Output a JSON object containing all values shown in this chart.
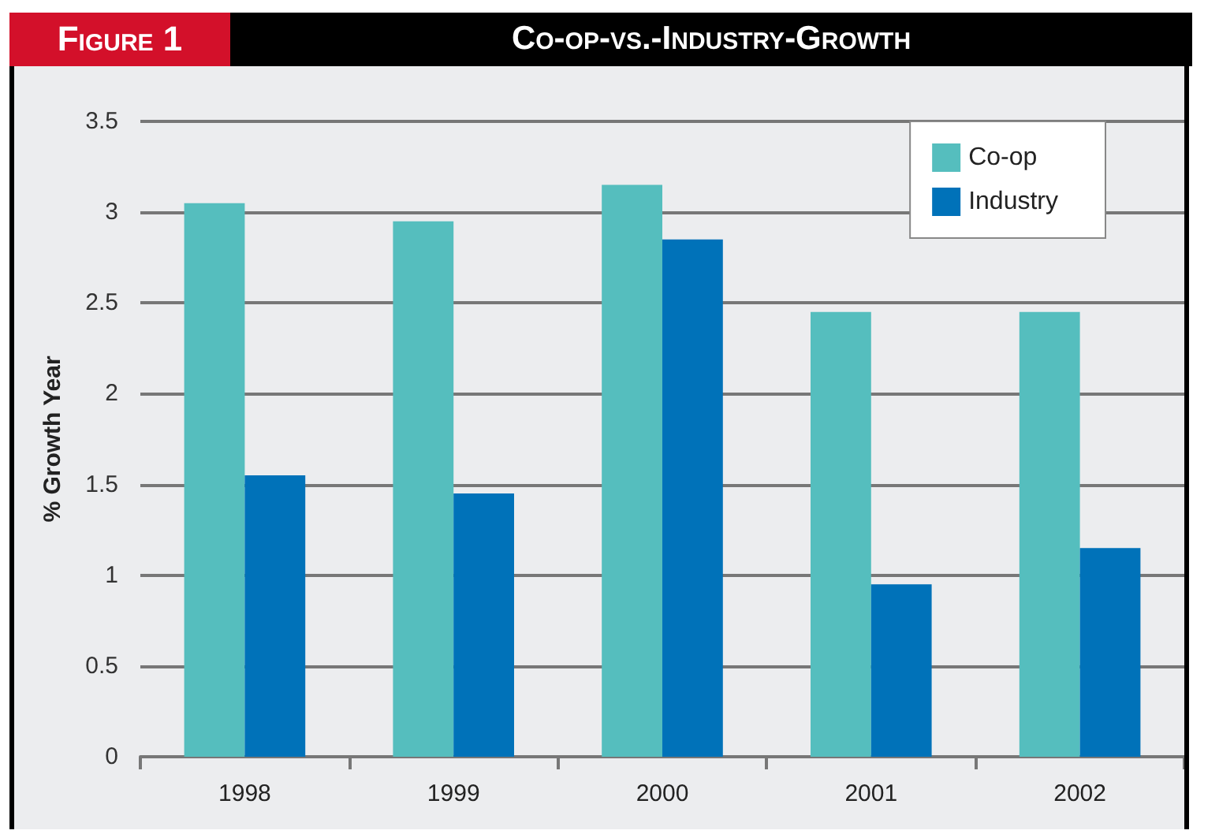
{
  "chart_data": {
    "type": "bar",
    "title": "Co-op-vs.-Industry-Growth",
    "annotations": [
      "Figure 1"
    ],
    "ylabel": "% Growth Year",
    "categories": [
      "1998",
      "1999",
      "2000",
      "2001",
      "2002"
    ],
    "series": [
      {
        "name": "Co-op",
        "color": "#55bebe",
        "values": [
          3.05,
          2.95,
          3.15,
          2.45,
          2.45
        ]
      },
      {
        "name": "Industry",
        "color": "#0072b9",
        "values": [
          1.55,
          1.45,
          2.85,
          0.95,
          1.15
        ]
      }
    ],
    "ylim": [
      0,
      3.5
    ],
    "yticks": [
      0,
      0.5,
      1,
      1.5,
      2,
      2.5,
      3,
      3.5
    ],
    "grid": "y",
    "legend": "top right"
  }
}
